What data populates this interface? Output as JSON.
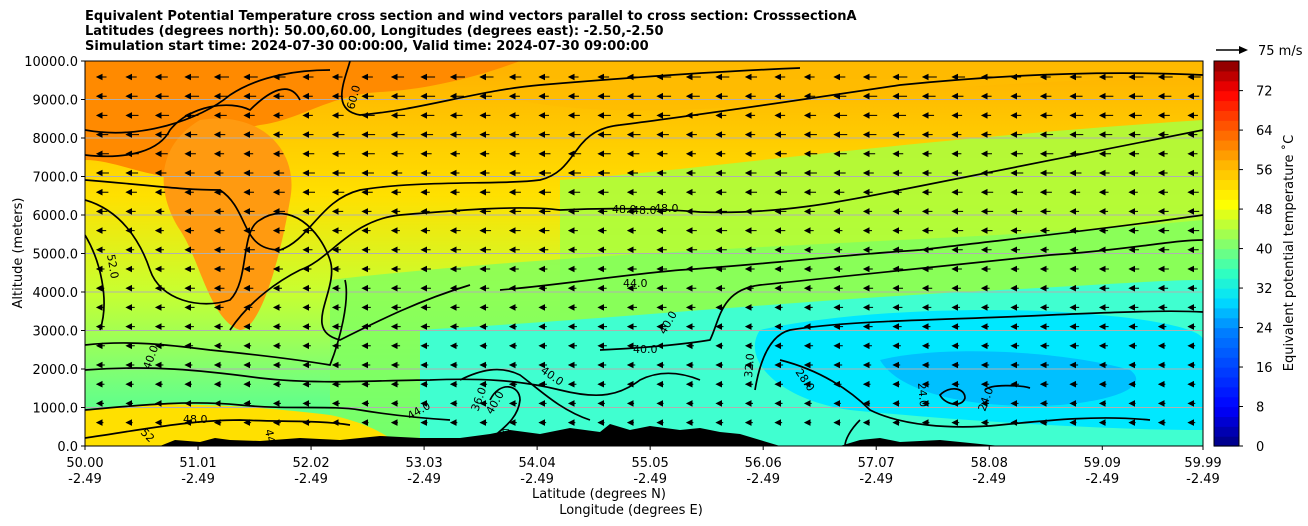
{
  "chart_data": {
    "type": "contour",
    "title_lines": [
      "Equivalent Potential Temperature cross section and wind vectors parallel to cross section: CrosssectionA",
      "Latitudes (degrees north): 50.00,60.00, Longitudes (degrees east): -2.50,-2.50",
      "Simulation start time: 2024-07-30 00:00:00, Valid time: 2024-07-30 09:00:00"
    ],
    "xlabel_line1": "Latitude (degrees N)",
    "xlabel_line2": "Longitude (degrees E)",
    "ylabel": "Altitude (meters)",
    "x_ticks": [
      {
        "lat": "50.00",
        "lon": "-2.49"
      },
      {
        "lat": "51.01",
        "lon": "-2.49"
      },
      {
        "lat": "52.02",
        "lon": "-2.49"
      },
      {
        "lat": "53.03",
        "lon": "-2.49"
      },
      {
        "lat": "54.04",
        "lon": "-2.49"
      },
      {
        "lat": "55.05",
        "lon": "-2.49"
      },
      {
        "lat": "56.06",
        "lon": "-2.49"
      },
      {
        "lat": "57.07",
        "lon": "-2.49"
      },
      {
        "lat": "58.08",
        "lon": "-2.49"
      },
      {
        "lat": "59.09",
        "lon": "-2.49"
      },
      {
        "lat": "59.99",
        "lon": "-2.49"
      }
    ],
    "y_ticks": [
      "0.0",
      "1000.0",
      "2000.0",
      "3000.0",
      "4000.0",
      "5000.0",
      "6000.0",
      "7000.0",
      "8000.0",
      "9000.0",
      "10000.0"
    ],
    "xlim": [
      50.0,
      59.99
    ],
    "ylim": [
      0,
      10000
    ],
    "grid_horizontal": true,
    "colorbar": {
      "label": "Equivalent potential temperature ˚C",
      "ticks": [
        "0",
        "8",
        "16",
        "24",
        "32",
        "40",
        "48",
        "56",
        "64",
        "72"
      ],
      "range": [
        0,
        78
      ]
    },
    "quiver_key_label": "75 m/s",
    "contour_labels": [
      "60.0",
      "52.0",
      "48.0",
      "48.0",
      "48.0",
      "44.0",
      "40.0",
      "40.0",
      "40.0",
      "40.0",
      "40.0",
      "48.0",
      "36.0",
      "44.0",
      "32.0",
      "28.0",
      "24.0",
      "24.0",
      "44",
      "40",
      "52"
    ],
    "colors": {
      "warm": "#ff7f00",
      "mid": "#ffe600",
      "green": "#a0ff50",
      "cool": "#00e0ff",
      "terrain": "#000000"
    }
  }
}
